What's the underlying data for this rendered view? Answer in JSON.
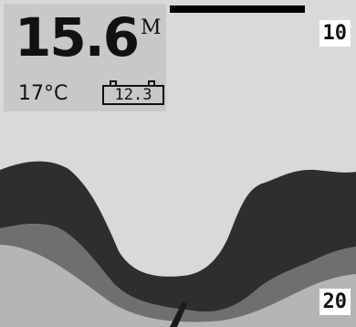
{
  "display": {
    "depth": "15.6",
    "depth_unit": "M",
    "temperature": "17°C",
    "battery_voltage": "12.3",
    "range_top": "10",
    "range_bottom": "20"
  },
  "colors": {
    "water": "#d9d9d9",
    "bottom_echo": "#2e2e2e",
    "mid_echo": "#6f6f6f",
    "weak_echo": "#b5b5b5",
    "panel": "#c8c8c8"
  },
  "icons": [
    "battery-icon",
    "fish-arrow-icon"
  ]
}
